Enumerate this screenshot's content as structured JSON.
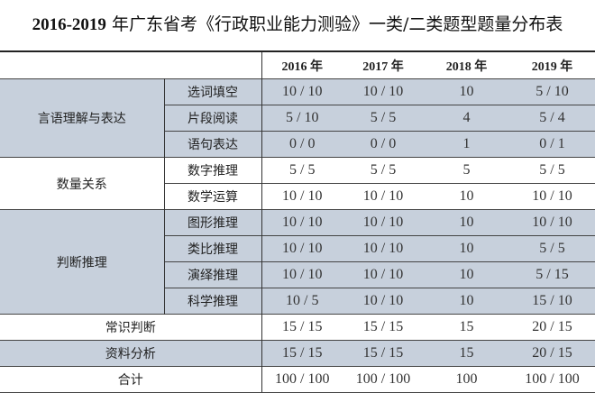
{
  "title": {
    "years": "2016-2019",
    "text": "年广东省考《行政职业能力测验》一类/二类题型题量分布表"
  },
  "years": [
    "2016 年",
    "2017 年",
    "2018 年",
    "2019 年"
  ],
  "shade_color": "#c7d0dc",
  "groups": [
    {
      "name": "言语理解与表达",
      "rows": [
        {
          "sub": "选词填空",
          "v": [
            "10 / 10",
            "10 / 10",
            "10",
            "5 / 10"
          ]
        },
        {
          "sub": "片段阅读",
          "v": [
            "5 / 10",
            "5 / 5",
            "4",
            "5 / 4"
          ]
        },
        {
          "sub": "语句表达",
          "v": [
            "0 / 0",
            "0 / 0",
            "1",
            "0 / 1"
          ]
        }
      ]
    },
    {
      "name": "数量关系",
      "rows": [
        {
          "sub": "数字推理",
          "v": [
            "5 / 5",
            "5 / 5",
            "5",
            "5 / 5"
          ]
        },
        {
          "sub": "数学运算",
          "v": [
            "10 / 10",
            "10 / 10",
            "10",
            "10 / 10"
          ]
        }
      ]
    },
    {
      "name": "判断推理",
      "rows": [
        {
          "sub": "图形推理",
          "v": [
            "10 / 10",
            "10 / 10",
            "10",
            "10 / 10"
          ]
        },
        {
          "sub": "类比推理",
          "v": [
            "10 / 10",
            "10 / 10",
            "10",
            "5 / 5"
          ]
        },
        {
          "sub": "演绎推理",
          "v": [
            "10 / 10",
            "10 / 10",
            "10",
            "5 / 15"
          ]
        },
        {
          "sub": "科学推理",
          "v": [
            "10 / 5",
            "10 / 10",
            "10",
            "15 / 10"
          ]
        }
      ]
    }
  ],
  "singles": [
    {
      "name": "常识判断",
      "v": [
        "15 / 15",
        "15 / 15",
        "15",
        "20 / 15"
      ]
    },
    {
      "name": "资料分析",
      "v": [
        "15 / 15",
        "15 / 15",
        "15",
        "20 / 15"
      ]
    },
    {
      "name": "合计",
      "v": [
        "100 / 100",
        "100 / 100",
        "100",
        "100 / 100"
      ]
    }
  ]
}
